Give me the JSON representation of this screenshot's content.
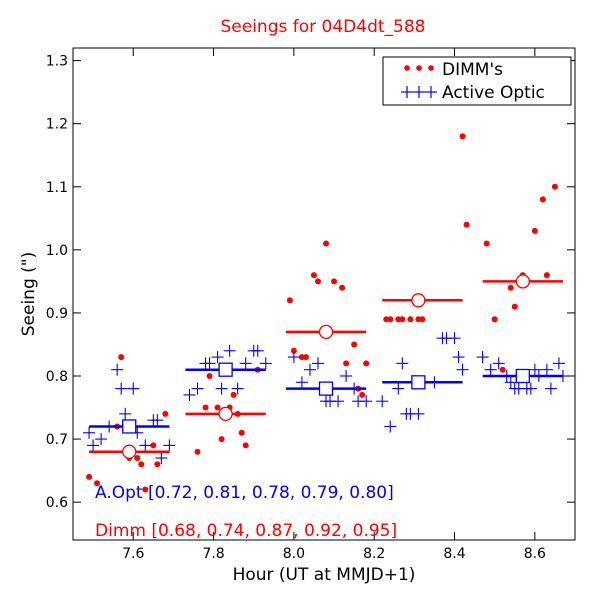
{
  "chart_data": {
    "type": "scatter",
    "title": "Seeings for 04D4dt_588",
    "xlabel": "Hour (UT at MMJD+1)",
    "ylabel": "Seeing (\")",
    "xlim": [
      7.45,
      8.7
    ],
    "ylim": [
      0.54,
      1.32
    ],
    "xticks": [
      7.6,
      7.8,
      8.0,
      8.2,
      8.4,
      8.6
    ],
    "xtick_labels": [
      "7.6",
      "7.8",
      "8.0",
      "8.2",
      "8.4",
      "8.6"
    ],
    "yticks": [
      0.6,
      0.7,
      0.8,
      0.9,
      1.0,
      1.1,
      1.2,
      1.3
    ],
    "ytick_labels": [
      "0.6",
      "0.7",
      "0.8",
      "0.9",
      "1.0",
      "1.1",
      "1.2",
      "1.3"
    ],
    "grid": false,
    "legend_position": "top-right",
    "series": [
      {
        "name": "DIMM's",
        "marker": "dot",
        "color": "#ff0000",
        "points": [
          [
            7.49,
            0.64
          ],
          [
            7.51,
            0.63
          ],
          [
            7.56,
            0.72
          ],
          [
            7.57,
            0.83
          ],
          [
            7.59,
            0.67
          ],
          [
            7.61,
            0.67
          ],
          [
            7.62,
            0.66
          ],
          [
            7.63,
            0.62
          ],
          [
            7.65,
            0.69
          ],
          [
            7.66,
            0.66
          ],
          [
            7.68,
            0.74
          ],
          [
            7.76,
            0.68
          ],
          [
            7.78,
            0.75
          ],
          [
            7.79,
            0.8
          ],
          [
            7.81,
            0.75
          ],
          [
            7.82,
            0.7
          ],
          [
            7.84,
            0.75
          ],
          [
            7.85,
            0.77
          ],
          [
            7.86,
            0.74
          ],
          [
            7.87,
            0.71
          ],
          [
            7.88,
            0.69
          ],
          [
            7.91,
            0.81
          ],
          [
            7.99,
            0.92
          ],
          [
            8.0,
            0.84
          ],
          [
            8.02,
            0.83
          ],
          [
            8.03,
            0.83
          ],
          [
            8.05,
            0.96
          ],
          [
            8.06,
            0.95
          ],
          [
            8.08,
            1.01
          ],
          [
            8.1,
            0.95
          ],
          [
            8.12,
            0.94
          ],
          [
            8.13,
            0.82
          ],
          [
            8.15,
            0.85
          ],
          [
            8.16,
            0.78
          ],
          [
            8.17,
            0.77
          ],
          [
            8.18,
            0.82
          ],
          [
            8.23,
            0.89
          ],
          [
            8.24,
            0.89
          ],
          [
            8.26,
            0.89
          ],
          [
            8.27,
            0.89
          ],
          [
            8.29,
            0.89
          ],
          [
            8.31,
            0.89
          ],
          [
            8.32,
            0.89
          ],
          [
            8.42,
            1.18
          ],
          [
            8.43,
            1.04
          ],
          [
            8.48,
            1.01
          ],
          [
            8.5,
            0.89
          ],
          [
            8.52,
            0.81
          ],
          [
            8.54,
            0.94
          ],
          [
            8.55,
            0.91
          ],
          [
            8.57,
            0.96
          ],
          [
            8.6,
            1.03
          ],
          [
            8.62,
            1.08
          ],
          [
            8.63,
            0.96
          ],
          [
            8.65,
            1.1
          ]
        ]
      },
      {
        "name": "Active Optic",
        "marker": "plus",
        "color": "#0000ff",
        "points": [
          [
            7.49,
            0.71
          ],
          [
            7.5,
            0.69
          ],
          [
            7.52,
            0.7
          ],
          [
            7.54,
            0.72
          ],
          [
            7.56,
            0.81
          ],
          [
            7.57,
            0.78
          ],
          [
            7.58,
            0.74
          ],
          [
            7.6,
            0.78
          ],
          [
            7.61,
            0.71
          ],
          [
            7.63,
            0.69
          ],
          [
            7.65,
            0.73
          ],
          [
            7.66,
            0.73
          ],
          [
            7.67,
            0.67
          ],
          [
            7.69,
            0.69
          ],
          [
            7.74,
            0.77
          ],
          [
            7.76,
            0.78
          ],
          [
            7.78,
            0.82
          ],
          [
            7.79,
            0.82
          ],
          [
            7.81,
            0.83
          ],
          [
            7.82,
            0.78
          ],
          [
            7.84,
            0.84
          ],
          [
            7.86,
            0.78
          ],
          [
            7.88,
            0.82
          ],
          [
            7.9,
            0.84
          ],
          [
            7.91,
            0.84
          ],
          [
            7.93,
            0.82
          ],
          [
            8.0,
            0.83
          ],
          [
            8.02,
            0.79
          ],
          [
            8.04,
            0.81
          ],
          [
            8.06,
            0.82
          ],
          [
            8.08,
            0.76
          ],
          [
            8.09,
            0.76
          ],
          [
            8.11,
            0.76
          ],
          [
            8.13,
            0.8
          ],
          [
            8.15,
            0.78
          ],
          [
            8.16,
            0.76
          ],
          [
            8.18,
            0.76
          ],
          [
            8.22,
            0.76
          ],
          [
            8.24,
            0.72
          ],
          [
            8.26,
            0.78
          ],
          [
            8.27,
            0.82
          ],
          [
            8.28,
            0.74
          ],
          [
            8.29,
            0.74
          ],
          [
            8.31,
            0.74
          ],
          [
            8.35,
            0.79
          ],
          [
            8.37,
            0.86
          ],
          [
            8.38,
            0.86
          ],
          [
            8.4,
            0.86
          ],
          [
            8.41,
            0.83
          ],
          [
            8.42,
            0.81
          ],
          [
            8.47,
            0.83
          ],
          [
            8.49,
            0.81
          ],
          [
            8.51,
            0.82
          ],
          [
            8.53,
            0.8
          ],
          [
            8.54,
            0.79
          ],
          [
            8.55,
            0.78
          ],
          [
            8.56,
            0.78
          ],
          [
            8.58,
            0.78
          ],
          [
            8.59,
            0.78
          ],
          [
            8.6,
            0.81
          ],
          [
            8.61,
            0.8
          ],
          [
            8.63,
            0.81
          ],
          [
            8.64,
            0.78
          ],
          [
            8.66,
            0.82
          ],
          [
            8.67,
            0.8
          ]
        ]
      }
    ],
    "bins": [
      {
        "x0": 7.49,
        "x1": 7.69,
        "dimm_mean": 0.68,
        "aopt_mean": 0.72,
        "center": 7.59
      },
      {
        "x0": 7.73,
        "x1": 7.93,
        "dimm_mean": 0.74,
        "aopt_mean": 0.81,
        "center": 7.83
      },
      {
        "x0": 7.98,
        "x1": 8.18,
        "dimm_mean": 0.87,
        "aopt_mean": 0.78,
        "center": 8.08
      },
      {
        "x0": 8.22,
        "x1": 8.42,
        "dimm_mean": 0.92,
        "aopt_mean": 0.79,
        "center": 8.31
      },
      {
        "x0": 8.47,
        "x1": 8.67,
        "dimm_mean": 0.95,
        "aopt_mean": 0.8,
        "center": 8.57
      }
    ],
    "annotations": {
      "aopt_text": "A.Opt [0.72, 0.81, 0.78, 0.79, 0.80]",
      "dimm_text": "Dimm [0.68, 0.74, 0.87, 0.92, 0.95]",
      "aopt_color": "#0000ff",
      "dimm_color": "#ff0000"
    }
  }
}
